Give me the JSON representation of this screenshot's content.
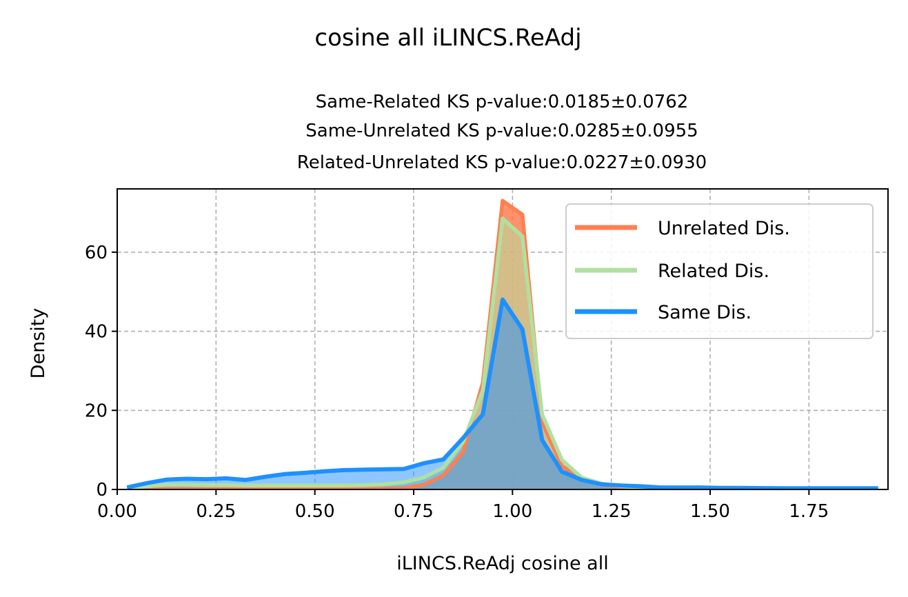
{
  "chart_data": {
    "type": "area",
    "suptitle": "cosine all iLINCS.ReAdj",
    "subtitle_lines": [
      "Same-Related KS p-value:0.0185±0.0762",
      "Same-Unrelated KS p-value:0.0285±0.0955",
      "Related-Unrelated KS p-value:0.0227±0.0930"
    ],
    "xlabel": "iLINCS.ReAdj cosine all",
    "ylabel": "Density",
    "xlim": [
      0.0,
      1.95
    ],
    "ylim": [
      0,
      76
    ],
    "xticks": [
      0.0,
      0.25,
      0.5,
      0.75,
      1.0,
      1.25,
      1.5,
      1.75
    ],
    "xtick_labels": [
      "0.00",
      "0.25",
      "0.50",
      "0.75",
      "1.00",
      "1.25",
      "1.50",
      "1.75"
    ],
    "yticks": [
      0,
      20,
      40,
      60
    ],
    "ytick_labels": [
      "0",
      "20",
      "40",
      "60"
    ],
    "grid": true,
    "legend_position": "top-right",
    "series": [
      {
        "name": "Unrelated Dis.",
        "color": "#ff7f50",
        "fill": "#ff7f50",
        "x": [
          0.025,
          0.075,
          0.125,
          0.175,
          0.225,
          0.275,
          0.325,
          0.375,
          0.425,
          0.475,
          0.525,
          0.575,
          0.625,
          0.675,
          0.725,
          0.775,
          0.825,
          0.875,
          0.925,
          0.975,
          1.025,
          1.075,
          1.125,
          1.175,
          1.225,
          1.275,
          1.325,
          1.375,
          1.425,
          1.475,
          1.525,
          1.575,
          1.625,
          1.675,
          1.725,
          1.775,
          1.825,
          1.875,
          1.925
        ],
        "y": [
          0.1,
          0.1,
          0.1,
          0.1,
          0.1,
          0.1,
          0.1,
          0.1,
          0.1,
          0.1,
          0.1,
          0.1,
          0.1,
          0.2,
          0.3,
          1.2,
          3.5,
          9.5,
          27,
          73,
          69.5,
          17,
          6,
          2.5,
          1.2,
          0.6,
          0.3,
          0.2,
          0.1,
          0.1,
          0.1,
          0.1,
          0.05,
          0.05,
          0.05,
          0.05,
          0.05,
          0.05,
          0.05
        ]
      },
      {
        "name": "Related Dis.",
        "color": "#b0e0a0",
        "fill": "#b0e0a0",
        "x": [
          0.025,
          0.075,
          0.125,
          0.175,
          0.225,
          0.275,
          0.325,
          0.375,
          0.425,
          0.475,
          0.525,
          0.575,
          0.625,
          0.675,
          0.725,
          0.775,
          0.825,
          0.875,
          0.925,
          0.975,
          1.025,
          1.075,
          1.125,
          1.175,
          1.225,
          1.275,
          1.325,
          1.375,
          1.425,
          1.475,
          1.525,
          1.575,
          1.625,
          1.675,
          1.725,
          1.775,
          1.825,
          1.875,
          1.925
        ],
        "y": [
          0.3,
          0.8,
          1.2,
          1.2,
          1.1,
          1.1,
          1.0,
          1.0,
          1.0,
          1.0,
          1.0,
          1.0,
          1.1,
          1.3,
          1.8,
          3.0,
          5.5,
          12,
          25,
          68.5,
          64,
          19,
          7.5,
          3,
          1.5,
          0.8,
          0.5,
          0.3,
          0.2,
          0.15,
          0.1,
          0.1,
          0.1,
          0.05,
          0.05,
          0.05,
          0.05,
          0.05,
          0.05
        ]
      },
      {
        "name": "Same Dis.",
        "color": "#1e90ff",
        "fill": "#1e90ff",
        "x": [
          0.025,
          0.075,
          0.125,
          0.175,
          0.225,
          0.275,
          0.325,
          0.375,
          0.425,
          0.475,
          0.525,
          0.575,
          0.625,
          0.675,
          0.725,
          0.775,
          0.825,
          0.875,
          0.925,
          0.975,
          1.025,
          1.075,
          1.125,
          1.175,
          1.225,
          1.275,
          1.325,
          1.375,
          1.425,
          1.475,
          1.525,
          1.575,
          1.625,
          1.675,
          1.725,
          1.775,
          1.825,
          1.875,
          1.925
        ],
        "y": [
          0.5,
          1.6,
          2.5,
          2.7,
          2.6,
          2.8,
          2.4,
          3.2,
          3.9,
          4.2,
          4.6,
          4.9,
          5.0,
          5.1,
          5.2,
          6.6,
          7.6,
          13,
          19,
          48,
          40.5,
          12.5,
          4.5,
          2.4,
          1.3,
          1.0,
          0.8,
          0.5,
          0.5,
          0.5,
          0.4,
          0.4,
          0.35,
          0.3,
          0.3,
          0.3,
          0.3,
          0.3,
          0.3
        ]
      }
    ]
  }
}
